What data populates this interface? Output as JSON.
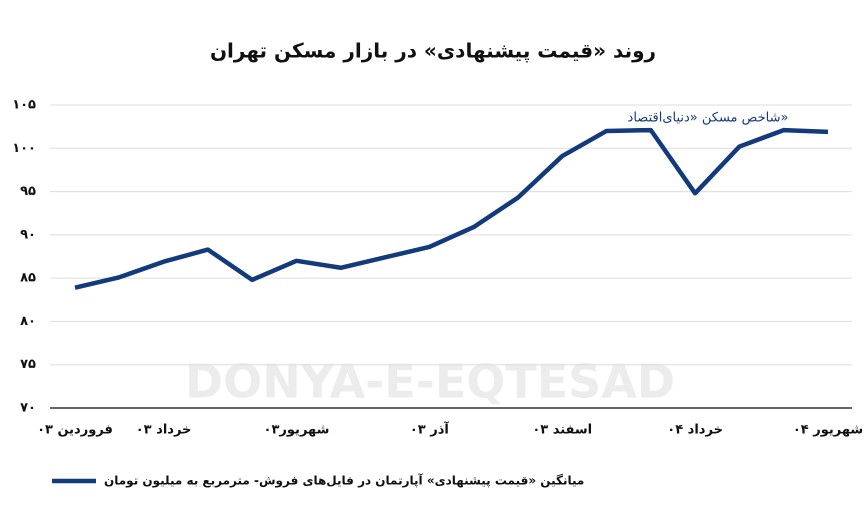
{
  "chart_data": {
    "type": "line",
    "title": "روند «قیمت پیشنهادی» در بازار مسکن تهران",
    "annotation": "شاخص مسکن «دنیای‌اقتصاد»",
    "watermark": "DONYA-E-EQTESAD",
    "categories": [
      "فروردین ۰۳",
      null,
      "خرداد ۰۳",
      null,
      null,
      "شهریور۰۳",
      null,
      null,
      "آذر ۰۳",
      null,
      null,
      "اسفند ۰۳",
      null,
      null,
      "خرداد ۰۴",
      null,
      null,
      "شهریور ۰۴"
    ],
    "series": [
      {
        "name": "میانگین «قیمت پیشنهادی» آپارتمان در فایل‌های فروش- مترمربع به میلیون تومان",
        "color": "#123a7c",
        "values": [
          83.9,
          85.1,
          86.9,
          88.3,
          84.8,
          87.0,
          86.2,
          87.4,
          88.6,
          90.9,
          94.3,
          99.1,
          102.0,
          102.1,
          94.8,
          100.2,
          102.1,
          101.9
        ]
      }
    ],
    "ylim": [
      70,
      105
    ],
    "yticks": [
      {
        "value": 70,
        "label": "۷۰"
      },
      {
        "value": 75,
        "label": "۷۵"
      },
      {
        "value": 80,
        "label": "۸۰"
      },
      {
        "value": 85,
        "label": "۸۵"
      },
      {
        "value": 90,
        "label": "۹۰"
      },
      {
        "value": 95,
        "label": "۹۵"
      },
      {
        "value": 100,
        "label": "۱۰۰"
      },
      {
        "value": 105,
        "label": "۱۰۵"
      }
    ],
    "grid": true
  }
}
